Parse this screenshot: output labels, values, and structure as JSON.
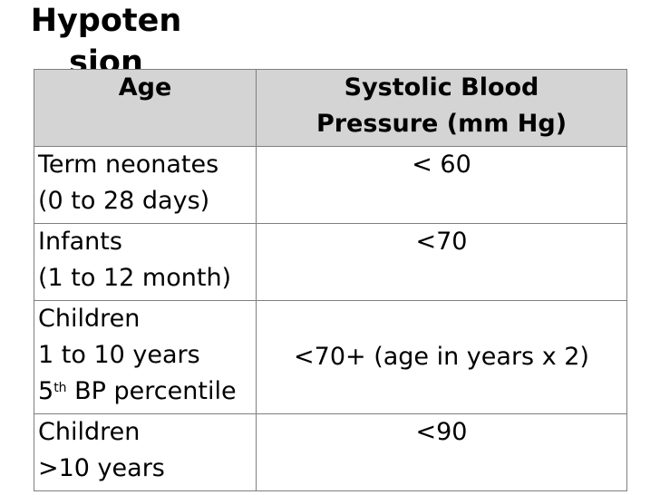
{
  "title_line1": "Hypoten",
  "title_line2": "sion",
  "table": {
    "headers": {
      "age": "Age",
      "sbp_line1": "Systolic Blood",
      "sbp_line2": "Pressure (mm Hg)"
    },
    "rows": [
      {
        "age_line1": "Term neonates",
        "age_line2": "(0 to 28 days)",
        "value": "< 60"
      },
      {
        "age_line1": "Infants",
        "age_line2": "(1 to 12 month)",
        "value": "<70"
      },
      {
        "age_line1": "Children",
        "age_line2": "1 to 10 years",
        "age_line3_pre": "5",
        "age_line3_sup": "th",
        "age_line3_post": " BP percentile",
        "value": "<70+ (age in years x 2)"
      },
      {
        "age_line1": "Children",
        "age_line2": ">10 years",
        "value": "<90"
      }
    ]
  }
}
